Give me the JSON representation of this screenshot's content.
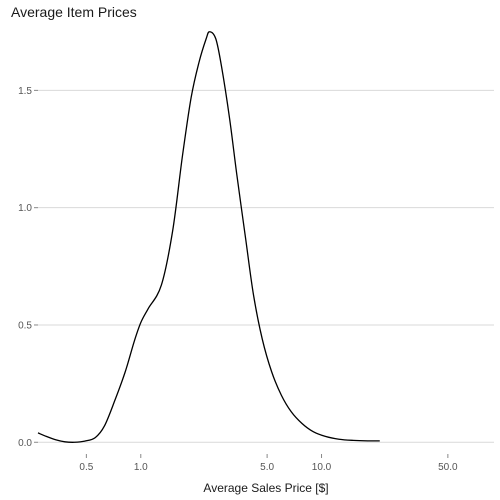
{
  "chart_data": {
    "type": "line",
    "title": "Average Item Prices",
    "xlabel": "Average Sales Price [$]",
    "ylabel": "",
    "x_scale": "log10",
    "xlim": [
      0.27,
      90
    ],
    "ylim": [
      -0.05,
      1.8
    ],
    "x_ticks": [
      0.5,
      1.0,
      5.0,
      10.0,
      50.0
    ],
    "x_tick_labels": [
      "0.5",
      "1.0",
      "5.0",
      "10.0",
      "50.0"
    ],
    "y_ticks": [
      0.0,
      0.5,
      1.0,
      1.5
    ],
    "y_tick_labels": [
      "0.0",
      "0.5",
      "1.0",
      "1.5"
    ],
    "grid": "horizontal",
    "legend": "none",
    "line_color": "#000000",
    "grid_color": "#d9d9d9",
    "series": [
      {
        "x": [
          0.27,
          0.3,
          0.34,
          0.38,
          0.43,
          0.49,
          0.56,
          0.63,
          0.72,
          0.82,
          0.92,
          1.0,
          1.1,
          1.3,
          1.5,
          1.7,
          1.9,
          2.1,
          2.3,
          2.4,
          2.6,
          2.8,
          3.1,
          3.4,
          3.8,
          4.2,
          4.7,
          5.3,
          6.0,
          6.8,
          7.8,
          9.0,
          10.5,
          12.5,
          15.0,
          18.0,
          21.0
        ],
        "y": [
          0.04,
          0.025,
          0.01,
          0.002,
          0.0,
          0.005,
          0.02,
          0.07,
          0.18,
          0.3,
          0.43,
          0.51,
          0.57,
          0.67,
          0.9,
          1.22,
          1.47,
          1.62,
          1.72,
          1.75,
          1.72,
          1.6,
          1.38,
          1.14,
          0.87,
          0.63,
          0.44,
          0.3,
          0.2,
          0.13,
          0.08,
          0.045,
          0.025,
          0.013,
          0.008,
          0.006,
          0.006
        ]
      }
    ]
  }
}
